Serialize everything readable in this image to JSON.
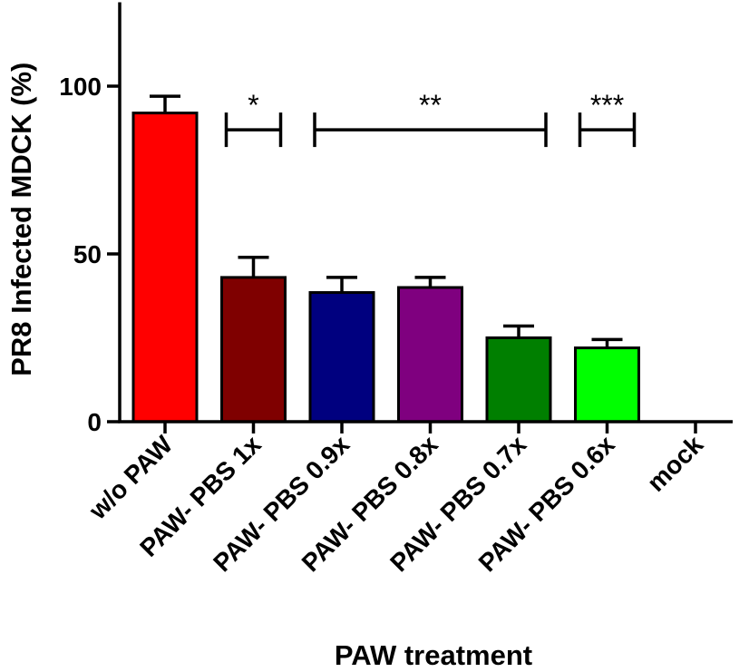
{
  "chart_data": {
    "type": "bar",
    "title": "",
    "xlabel": "PAW treatment",
    "ylabel": "PR8 Infected MDCK (%)",
    "ylim": [
      0,
      125
    ],
    "yticks": [
      0,
      50,
      100
    ],
    "categories": [
      "w/o PAW",
      "PAW- PBS 1x",
      "PAW- PBS 0.9x",
      "PAW- PBS 0.8x",
      "PAW- PBS 0.7x",
      "PAW- PBS 0.6x",
      "mock"
    ],
    "values": [
      92,
      43,
      38.5,
      40,
      25,
      22,
      0
    ],
    "errors": [
      5,
      6,
      4.5,
      3,
      3.5,
      2.5,
      0
    ],
    "colors": [
      "#ff0000",
      "#7f0000",
      "#00007f",
      "#7f007f",
      "#007f00",
      "#00ff00",
      "#ffffff"
    ],
    "significance": [
      {
        "label": "*",
        "from": 1,
        "to": 1,
        "y": 87
      },
      {
        "label": "**",
        "from": 2,
        "to": 4,
        "y": 87
      },
      {
        "label": "***",
        "from": 5,
        "to": 5,
        "y": 87
      }
    ],
    "grid": false,
    "legend": "none"
  }
}
